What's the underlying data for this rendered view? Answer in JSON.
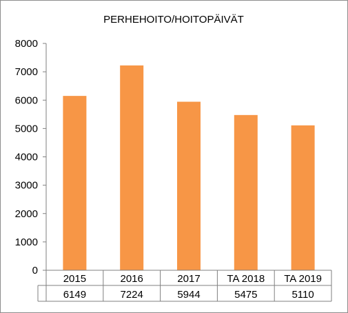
{
  "chart_data": {
    "type": "bar",
    "title": "PERHEHOITO/HOITOPÄIVÄT",
    "categories": [
      "2015",
      "2016",
      "2017",
      "TA 2018",
      "TA 2019"
    ],
    "values": [
      6149,
      7224,
      5944,
      5475,
      5110
    ],
    "value_labels": [
      "6149",
      "7224",
      "5944",
      "5475",
      "5110"
    ],
    "ylim": [
      0,
      8000
    ],
    "yticks": [
      0,
      1000,
      2000,
      3000,
      4000,
      5000,
      6000,
      7000,
      8000
    ],
    "ytick_labels": [
      "0",
      "1000",
      "2000",
      "3000",
      "4000",
      "5000",
      "6000",
      "7000",
      "8000"
    ],
    "grid": false,
    "legend": "none",
    "data_table": true,
    "bar_color": "#F79646"
  }
}
